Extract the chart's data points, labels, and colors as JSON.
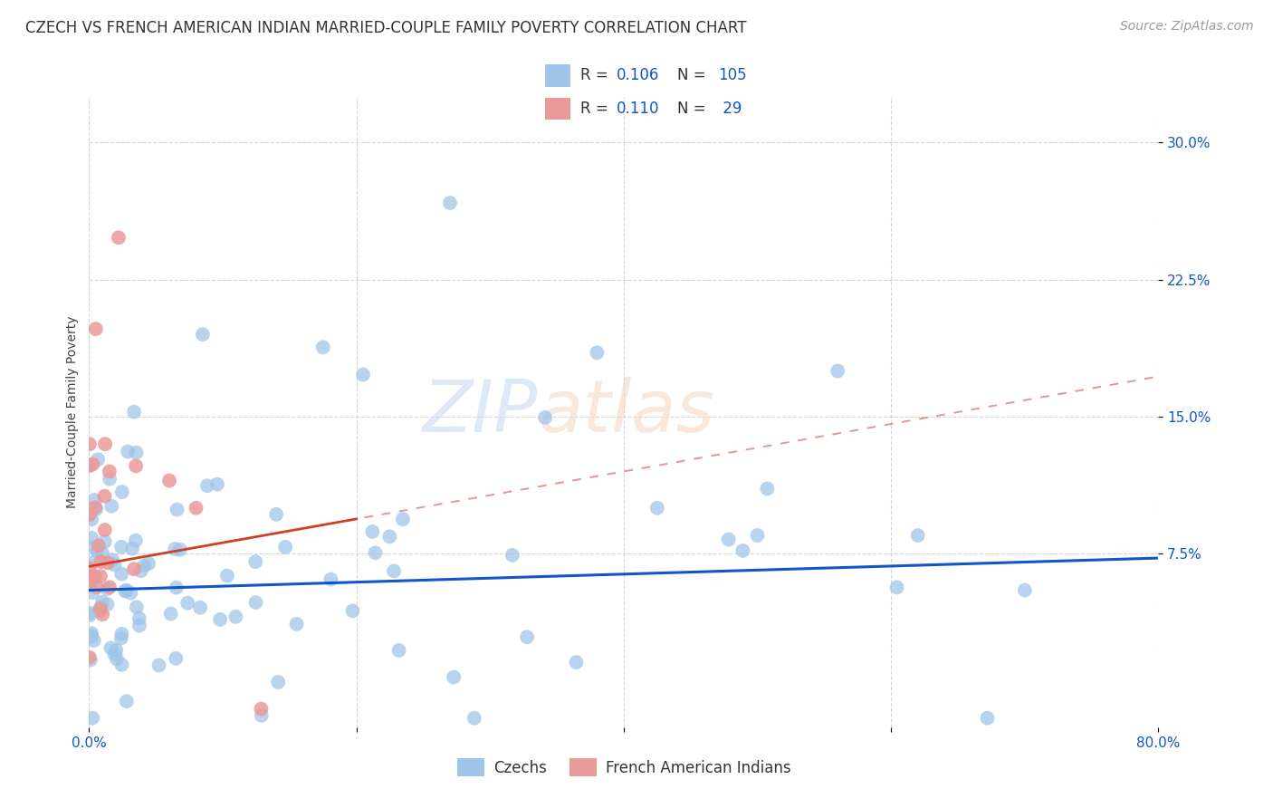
{
  "title": "CZECH VS FRENCH AMERICAN INDIAN MARRIED-COUPLE FAMILY POVERTY CORRELATION CHART",
  "source": "Source: ZipAtlas.com",
  "ylabel": "Married-Couple Family Poverty",
  "xlim": [
    0.0,
    0.8
  ],
  "ylim": [
    -0.02,
    0.325
  ],
  "yticks": [
    0.075,
    0.15,
    0.225,
    0.3
  ],
  "yticklabels": [
    "7.5%",
    "15.0%",
    "22.5%",
    "30.0%"
  ],
  "xtick_positions": [
    0.0,
    0.2,
    0.4,
    0.6,
    0.8
  ],
  "xticklabels": [
    "0.0%",
    "",
    "",
    "",
    "80.0%"
  ],
  "watermark_text": "ZIPatlas",
  "blue_color": "#9fc5e8",
  "pink_color": "#ea9999",
  "blue_line_color": "#1155cc",
  "pink_line_color": "#cc4125",
  "pink_dash_color": "#e06666",
  "bottom_legend_blue": "Czechs",
  "bottom_legend_pink": "French American Indians",
  "R_blue": 0.106,
  "N_blue": 105,
  "R_pink": 0.11,
  "N_pink": 29,
  "blue_intercept": 0.055,
  "blue_slope": 0.022,
  "pink_intercept": 0.068,
  "pink_slope": 0.13,
  "title_fontsize": 12,
  "axis_label_fontsize": 10,
  "tick_fontsize": 11,
  "legend_fontsize": 12,
  "source_fontsize": 10,
  "background_color": "#ffffff",
  "grid_color": "#cccccc"
}
